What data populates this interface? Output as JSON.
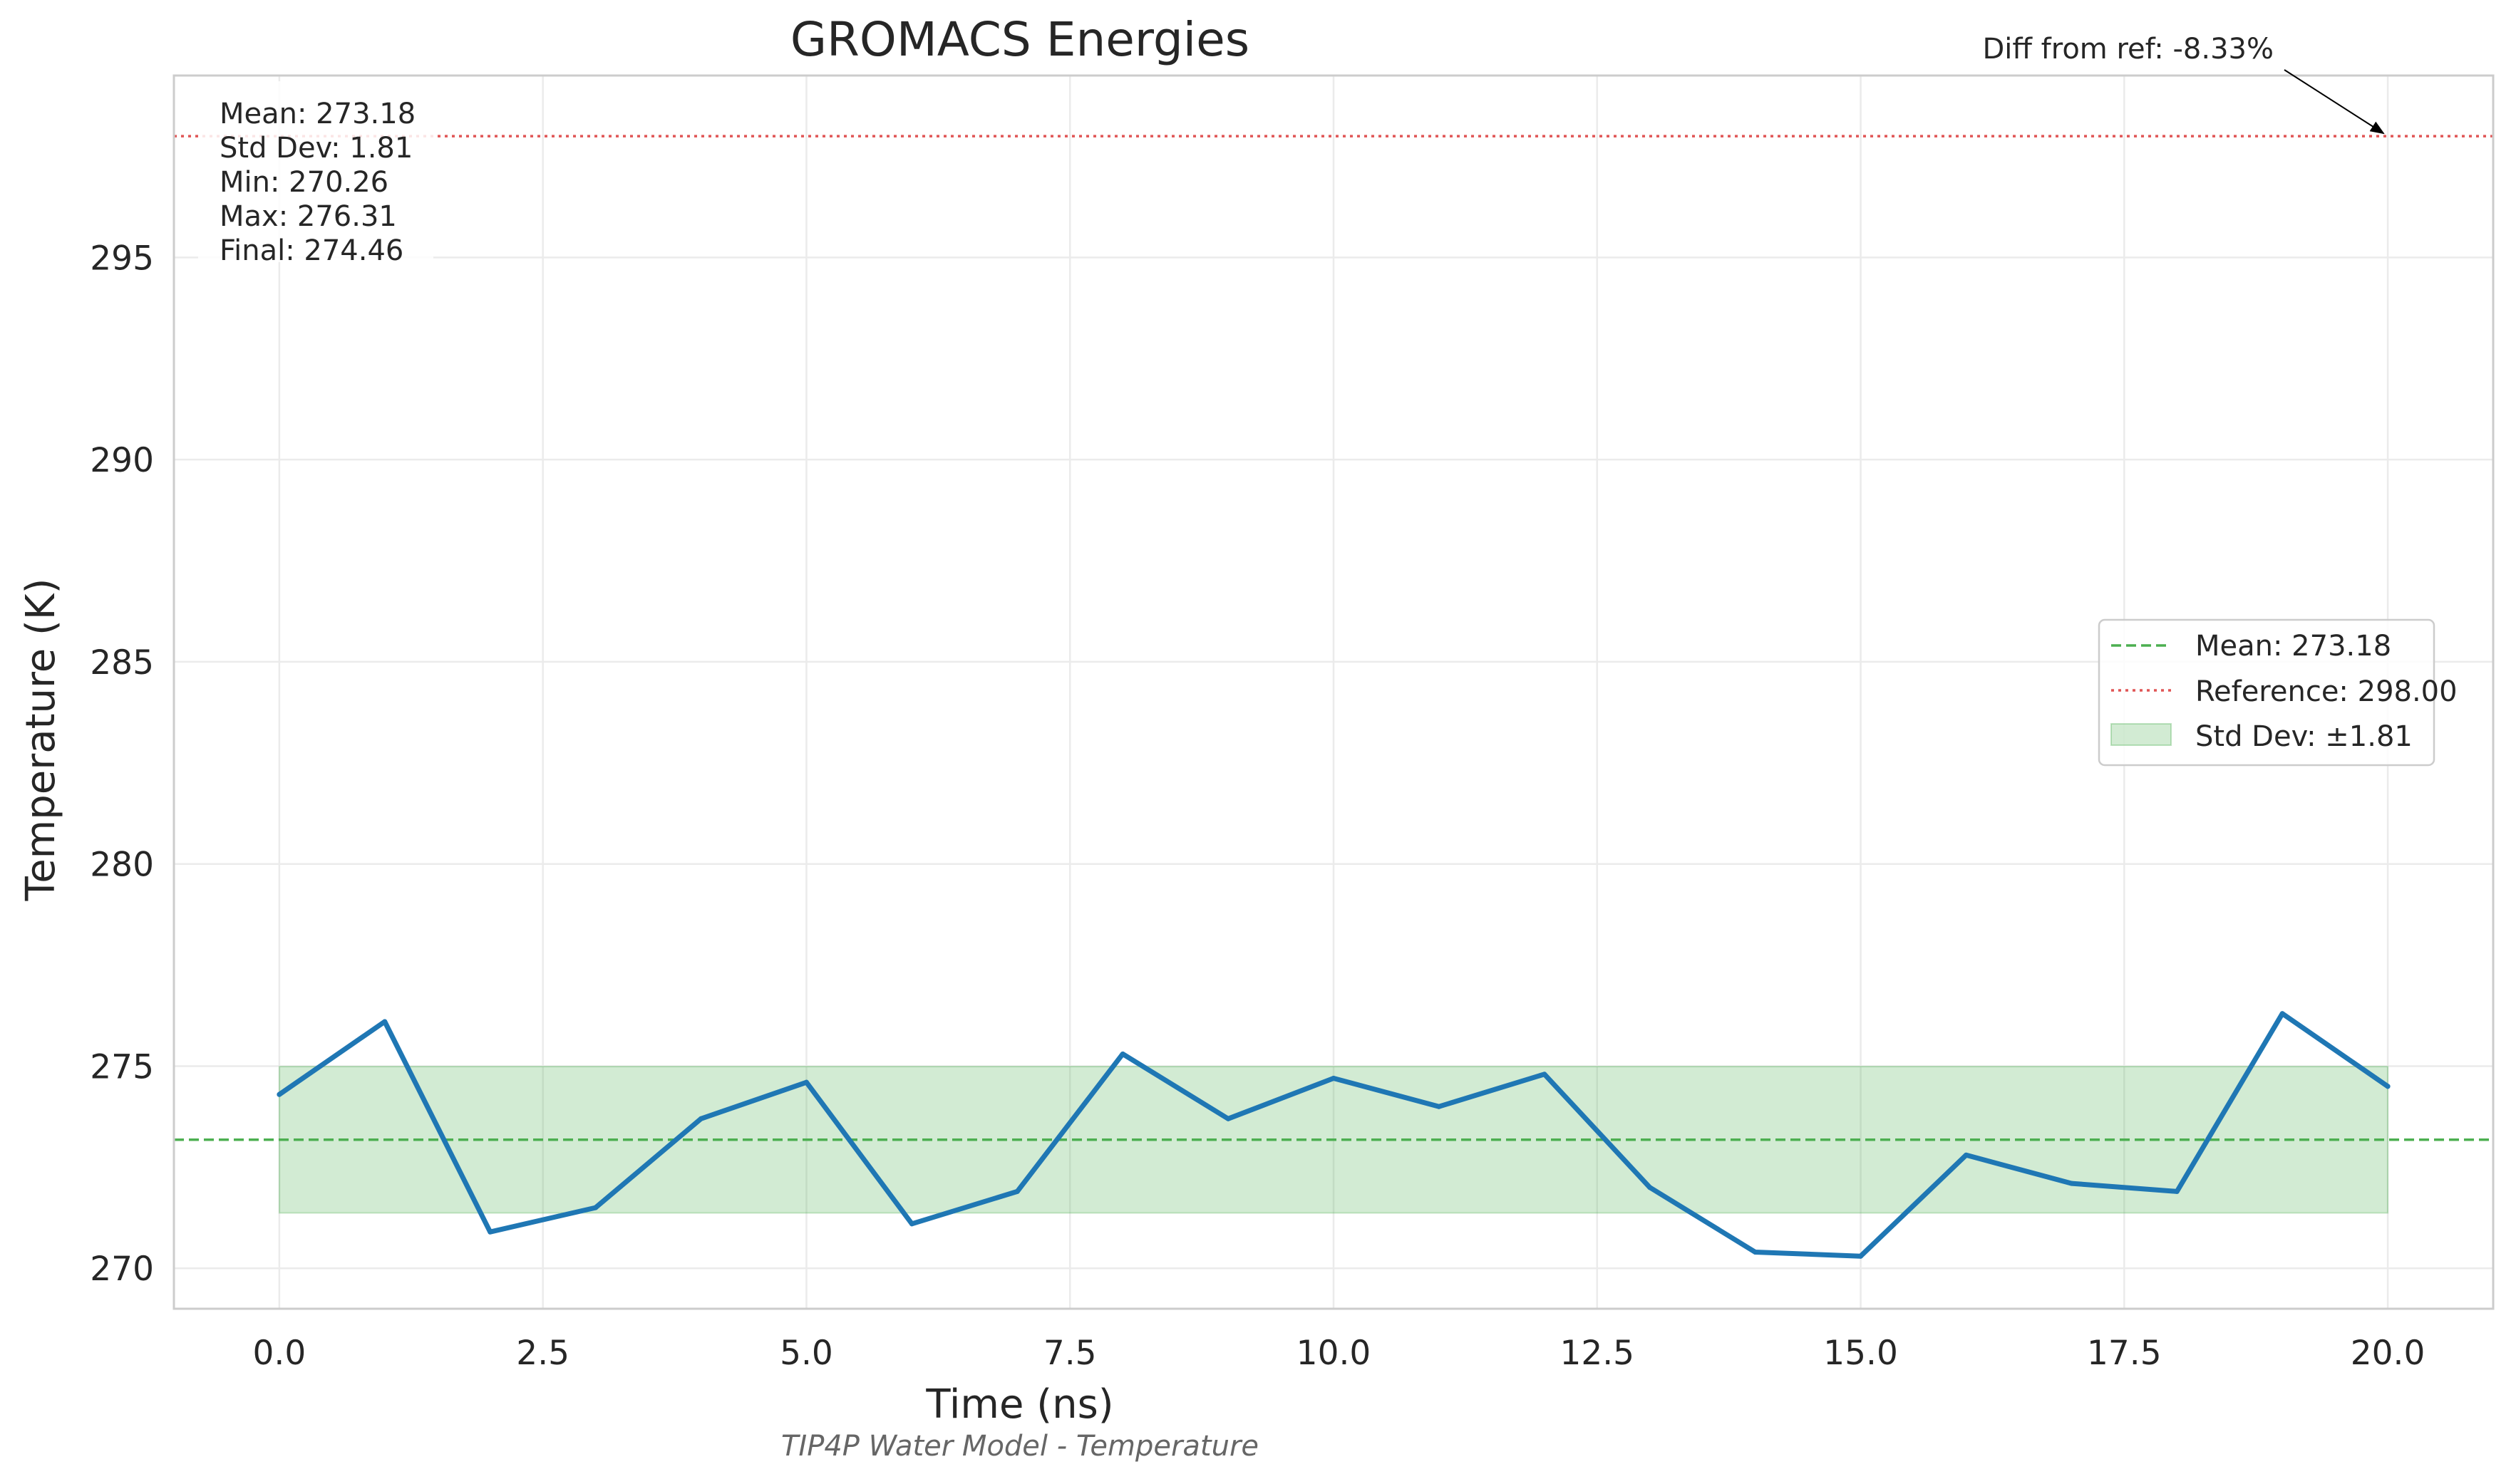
{
  "chart_data": {
    "type": "line",
    "title": "GROMACS Energies",
    "subtitle": "TIP4P Water Model - Temperature",
    "xlabel": "Time (ns)",
    "ylabel": "Temperature (K)",
    "xlim": [
      -1.0,
      21.0
    ],
    "ylim": [
      269.0,
      299.5
    ],
    "xticks": [
      0.0,
      2.5,
      5.0,
      7.5,
      10.0,
      12.5,
      15.0,
      17.5,
      20.0
    ],
    "xtick_labels": [
      "0.0",
      "2.5",
      "5.0",
      "7.5",
      "10.0",
      "12.5",
      "15.0",
      "17.5",
      "20.0"
    ],
    "yticks": [
      270,
      275,
      280,
      285,
      290,
      295
    ],
    "ytick_labels": [
      "270",
      "275",
      "280",
      "285",
      "290",
      "295"
    ],
    "grid": true,
    "series": [
      {
        "color": "#1f77b4",
        "x": [
          0,
          1,
          2,
          3,
          4,
          5,
          6,
          7,
          8,
          9,
          10,
          11,
          12,
          13,
          14,
          15,
          16,
          17,
          18,
          19,
          20
        ],
        "y": [
          274.3,
          276.1,
          270.9,
          271.5,
          273.7,
          274.6,
          271.1,
          271.9,
          275.3,
          273.7,
          274.7,
          274.0,
          274.8,
          272.0,
          270.4,
          270.3,
          272.8,
          272.1,
          271.9,
          276.3,
          274.5
        ]
      }
    ],
    "mean_line": {
      "value": 273.18,
      "color": "#4caf50",
      "label": "Mean: 273.18"
    },
    "reference_line": {
      "value": 298.0,
      "color": "#e05555",
      "label": "Reference: 298.00"
    },
    "std_band": {
      "low": 271.37,
      "high": 274.99,
      "x_range": [
        0,
        20
      ],
      "color": "#4caf50",
      "label": "Std Dev: ±1.81"
    },
    "legend_placement": "center-right",
    "stats_box": [
      "Mean: 273.18",
      "Std Dev: 1.81",
      "Min: 270.26",
      "Max: 276.31",
      "Final: 274.46"
    ],
    "annotation": {
      "text": "Diff from ref: -8.33%",
      "points_to": {
        "x": 20.0,
        "y": 298.0
      }
    }
  }
}
